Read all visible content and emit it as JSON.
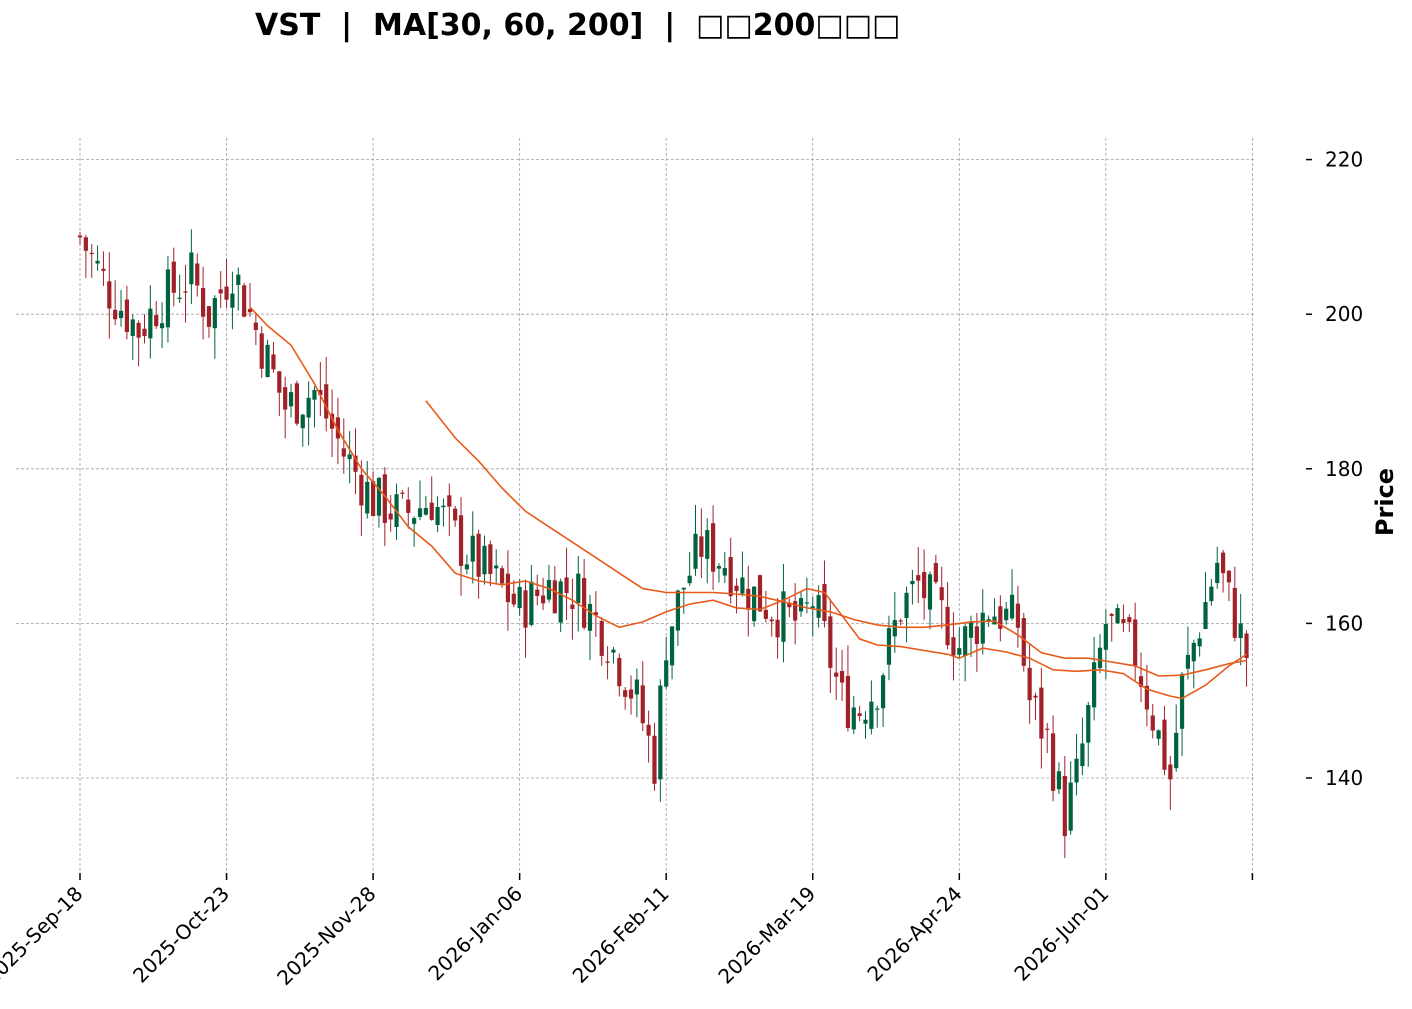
{
  "chart_data": {
    "type": "candlestick",
    "title": "VST  |  MA[30, 60, 200]  |  □□200□□□",
    "ylabel": "Price",
    "ylim": [
      127,
      222
    ],
    "yticks": [
      140,
      160,
      180,
      200,
      220
    ],
    "grid": true,
    "x_tick_labels": [
      "2025-Sep-18",
      "2025-Oct-23",
      "2025-Nov-28",
      "2026-Jan-06",
      "2026-Feb-11",
      "2026-Mar-19",
      "2026-Apr-24",
      "2026-Jun-01"
    ],
    "x_tick_index": [
      0,
      25,
      50,
      75,
      100,
      125,
      150,
      175
    ],
    "n_candles": 200,
    "colors": {
      "up": "#006340",
      "down": "#a02128",
      "ma30": "#e85a1a",
      "ma60": "#e85a1a",
      "grid": "#a0a0a0"
    },
    "key_closes": [
      [
        0,
        210
      ],
      [
        5,
        203
      ],
      [
        10,
        198
      ],
      [
        14,
        202
      ],
      [
        19,
        205
      ],
      [
        22,
        200
      ],
      [
        26,
        206
      ],
      [
        30,
        198
      ],
      [
        35,
        188
      ],
      [
        40,
        190
      ],
      [
        45,
        182
      ],
      [
        50,
        176
      ],
      [
        55,
        174
      ],
      [
        60,
        176
      ],
      [
        65,
        170
      ],
      [
        70,
        166
      ],
      [
        75,
        162
      ],
      [
        80,
        165
      ],
      [
        85,
        164
      ],
      [
        90,
        158
      ],
      [
        95,
        150
      ],
      [
        98,
        142
      ],
      [
        100,
        158
      ],
      [
        103,
        165
      ],
      [
        106,
        170
      ],
      [
        110,
        168
      ],
      [
        113,
        165
      ],
      [
        116,
        163
      ],
      [
        120,
        161
      ],
      [
        123,
        160
      ],
      [
        125,
        163
      ],
      [
        127,
        158
      ],
      [
        130,
        150
      ],
      [
        133,
        149
      ],
      [
        136,
        152
      ],
      [
        140,
        162
      ],
      [
        143,
        165
      ],
      [
        145,
        163
      ],
      [
        148,
        160
      ],
      [
        150,
        157
      ],
      [
        155,
        162
      ],
      [
        160,
        160
      ],
      [
        162,
        150
      ],
      [
        165,
        145
      ],
      [
        168,
        135
      ],
      [
        170,
        140
      ],
      [
        172,
        148
      ],
      [
        175,
        160
      ],
      [
        178,
        158
      ],
      [
        180,
        156
      ],
      [
        183,
        148
      ],
      [
        186,
        140
      ],
      [
        188,
        152
      ],
      [
        191,
        160
      ],
      [
        194,
        168
      ],
      [
        196,
        163
      ],
      [
        199,
        156
      ]
    ],
    "ma30": [
      [
        29,
        200.9
      ],
      [
        32,
        198.5
      ],
      [
        36,
        196
      ],
      [
        40,
        191
      ],
      [
        44,
        185
      ],
      [
        48,
        180
      ],
      [
        52,
        176.5
      ],
      [
        56,
        172.5
      ],
      [
        60,
        170
      ],
      [
        64,
        166.5
      ],
      [
        68,
        165.5
      ],
      [
        72,
        165
      ],
      [
        76,
        165.5
      ],
      [
        80,
        164.5
      ],
      [
        84,
        163
      ],
      [
        88,
        161
      ],
      [
        92,
        159.5
      ],
      [
        96,
        160.2
      ],
      [
        100,
        161.5
      ],
      [
        104,
        162.5
      ],
      [
        108,
        163
      ],
      [
        112,
        162
      ],
      [
        116,
        161.8
      ],
      [
        120,
        163
      ],
      [
        124,
        164.5
      ],
      [
        127,
        164
      ],
      [
        130,
        161
      ],
      [
        133,
        158
      ],
      [
        136,
        157.2
      ],
      [
        140,
        157
      ],
      [
        144,
        156.5
      ],
      [
        148,
        156
      ],
      [
        150,
        155.5
      ],
      [
        154,
        156.8
      ],
      [
        158,
        156.3
      ],
      [
        162,
        155.5
      ],
      [
        166,
        154
      ],
      [
        170,
        153.8
      ],
      [
        174,
        154
      ],
      [
        178,
        153.5
      ],
      [
        182,
        151.5
      ],
      [
        186,
        150.6
      ],
      [
        188,
        150.3
      ],
      [
        192,
        152
      ],
      [
        196,
        154.5
      ],
      [
        199,
        156
      ]
    ],
    "ma60": [
      [
        59,
        188.8
      ],
      [
        64,
        184
      ],
      [
        68,
        181
      ],
      [
        72,
        177.5
      ],
      [
        76,
        174.5
      ],
      [
        80,
        172.5
      ],
      [
        84,
        170.5
      ],
      [
        88,
        168.5
      ],
      [
        92,
        166.5
      ],
      [
        96,
        164.5
      ],
      [
        100,
        164
      ],
      [
        104,
        164
      ],
      [
        108,
        164
      ],
      [
        112,
        163.8
      ],
      [
        116,
        163.5
      ],
      [
        120,
        162.8
      ],
      [
        124,
        162
      ],
      [
        128,
        161.5
      ],
      [
        132,
        160.5
      ],
      [
        136,
        159.8
      ],
      [
        140,
        159.5
      ],
      [
        144,
        159.5
      ],
      [
        148,
        159.8
      ],
      [
        152,
        160.2
      ],
      [
        156,
        160.3
      ],
      [
        160,
        158.5
      ],
      [
        164,
        156.2
      ],
      [
        168,
        155.5
      ],
      [
        172,
        155.5
      ],
      [
        176,
        155
      ],
      [
        180,
        154.5
      ],
      [
        184,
        153.2
      ],
      [
        188,
        153.3
      ],
      [
        192,
        154
      ],
      [
        196,
        154.8
      ],
      [
        199,
        155.2
      ]
    ]
  }
}
